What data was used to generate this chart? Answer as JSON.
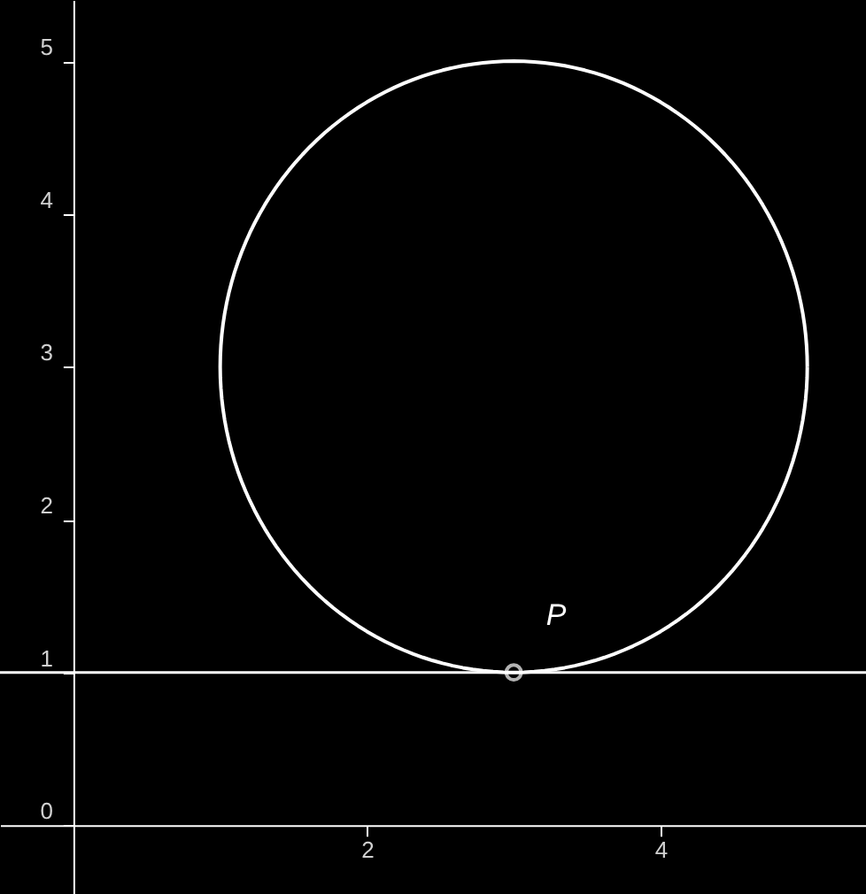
{
  "chart_data": {
    "type": "scatter",
    "xlim": [
      -0.5,
      5.4
    ],
    "ylim": [
      -0.45,
      5.4
    ],
    "xticks": [
      2,
      4
    ],
    "yticks": [
      0,
      1,
      2,
      3,
      4,
      5
    ],
    "grid": false,
    "series": [
      {
        "name": "P",
        "color": "#ffffff",
        "marker": "circle",
        "x": [
          3
        ],
        "values": [
          1
        ]
      }
    ],
    "ref_lines": [
      {
        "axis": "y",
        "value": 1,
        "color": "#ffffff",
        "line_style": "solid"
      }
    ]
  }
}
